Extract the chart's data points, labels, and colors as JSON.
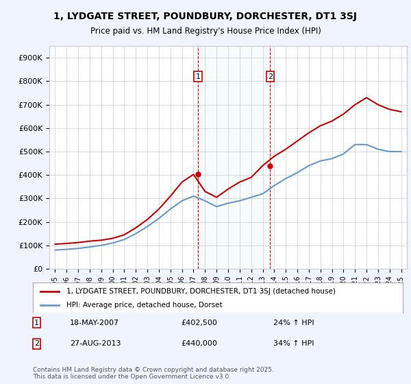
{
  "title": "1, LYDGATE STREET, POUNDBURY, DORCHESTER, DT1 3SJ",
  "subtitle": "Price paid vs. HM Land Registry's House Price Index (HPI)",
  "ylabel_ticks": [
    "£0",
    "£100K",
    "£200K",
    "£300K",
    "£400K",
    "£500K",
    "£600K",
    "£700K",
    "£800K",
    "£900K"
  ],
  "ytick_values": [
    0,
    100000,
    200000,
    300000,
    400000,
    500000,
    600000,
    700000,
    800000,
    900000
  ],
  "ylim": [
    0,
    950000
  ],
  "xlim_start": 1995,
  "xlim_end": 2025.5,
  "transaction1": {
    "date": 2007.38,
    "price": 402500,
    "label": "1",
    "text": "18-MAY-2007",
    "amount": "£402,500",
    "hpi": "24% ↑ HPI"
  },
  "transaction2": {
    "date": 2013.65,
    "price": 440000,
    "label": "2",
    "text": "27-AUG-2013",
    "amount": "£440,000",
    "hpi": "34% ↑ HPI"
  },
  "property_color": "#cc0000",
  "hpi_color": "#6699cc",
  "legend_property": "1, LYDGATE STREET, POUNDBURY, DORCHESTER, DT1 3SJ (detached house)",
  "legend_hpi": "HPI: Average price, detached house, Dorset",
  "footer": "Contains HM Land Registry data © Crown copyright and database right 2025.\nThis data is licensed under the Open Government Licence v3.0.",
  "background_color": "#f0f4ff",
  "plot_background": "#ffffff",
  "grid_color": "#cccccc",
  "years": [
    1995,
    1996,
    1997,
    1998,
    1999,
    2000,
    2001,
    2002,
    2003,
    2004,
    2005,
    2006,
    2007,
    2008,
    2009,
    2010,
    2011,
    2012,
    2013,
    2014,
    2015,
    2016,
    2017,
    2018,
    2019,
    2020,
    2021,
    2022,
    2023,
    2024,
    2025
  ],
  "property_prices": [
    105000,
    108000,
    112000,
    118000,
    122000,
    130000,
    145000,
    175000,
    210000,
    255000,
    310000,
    370000,
    402500,
    330000,
    305000,
    340000,
    370000,
    390000,
    440000,
    480000,
    510000,
    545000,
    580000,
    610000,
    630000,
    660000,
    700000,
    730000,
    700000,
    680000,
    670000
  ],
  "hpi_prices": [
    80000,
    83000,
    87000,
    93000,
    100000,
    110000,
    125000,
    150000,
    180000,
    215000,
    255000,
    290000,
    310000,
    290000,
    265000,
    280000,
    290000,
    305000,
    320000,
    355000,
    385000,
    410000,
    440000,
    460000,
    470000,
    490000,
    530000,
    530000,
    510000,
    500000,
    500000
  ]
}
